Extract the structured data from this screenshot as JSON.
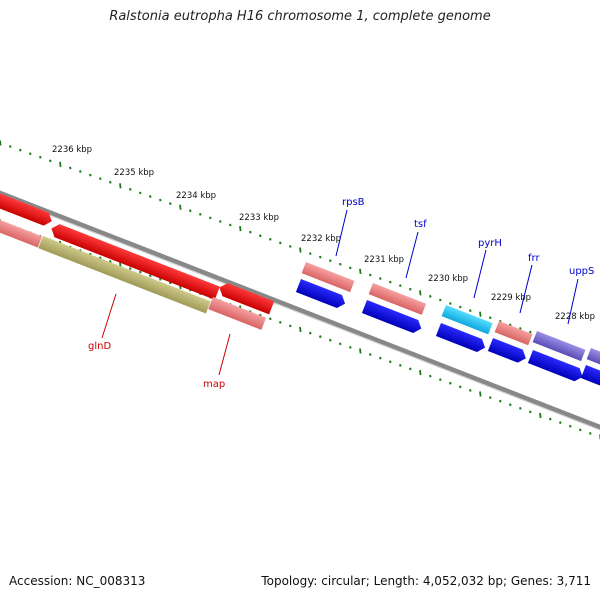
{
  "title": "Ralstonia eutropha H16 chromosome 1, complete genome",
  "footer": {
    "accession_label": "Accession:",
    "accession": "NC_008313",
    "topology_label": "Topology:",
    "topology": "circular",
    "length_label": "Length:",
    "length": "4,052,032 bp",
    "genes_label": "Genes:",
    "genes": "3,711"
  },
  "ruler_labels": [
    "2236 kbp",
    "2235 kbp",
    "2234 kbp",
    "2233 kbp",
    "2232 kbp",
    "2231 kbp",
    "2230 kbp",
    "2229 kbp",
    "2228 kbp"
  ],
  "genes": [
    {
      "name": "rpsB",
      "color": "#0000cc"
    },
    {
      "name": "tsf",
      "color": "#0000cc"
    },
    {
      "name": "pyrH",
      "color": "#0000cc"
    },
    {
      "name": "frr",
      "color": "#0000cc"
    },
    {
      "name": "uppS",
      "color": "#0000cc"
    },
    {
      "name": "glnD",
      "color": "#cc0000"
    },
    {
      "name": "map",
      "color": "#cc0000"
    }
  ],
  "colors": {
    "backbone": "#808080",
    "tick": "#1a7a1a",
    "red": "#ee0000",
    "pink": "#e88080",
    "blue": "#0000ee",
    "olive": "#b5b070",
    "cyan": "#22bbee",
    "purple": "#7766cc"
  }
}
